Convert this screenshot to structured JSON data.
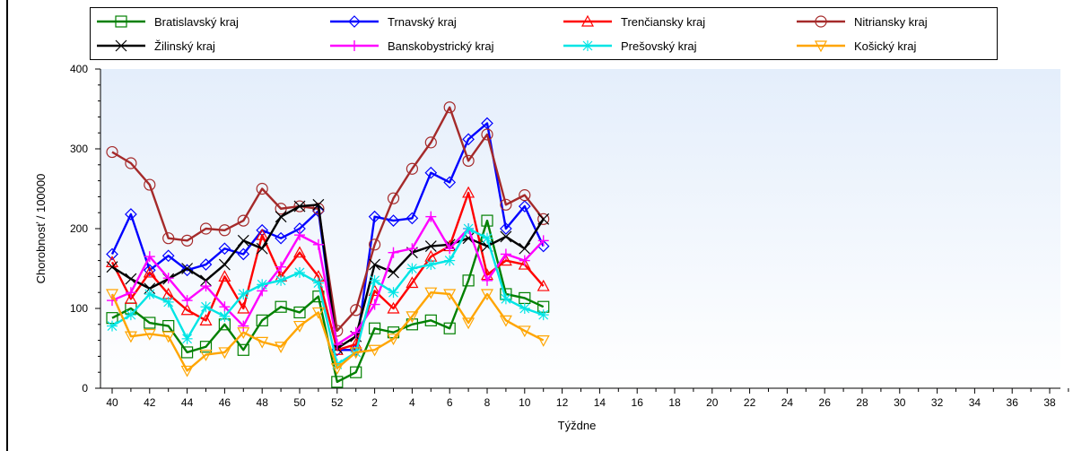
{
  "chart_data": {
    "type": "line",
    "xlabel": "Týždne",
    "ylabel": "Chorobnosť / 100000",
    "ylim": [
      0,
      400
    ],
    "yticks": [
      "0",
      "100",
      "200",
      "300",
      "400"
    ],
    "xtick_labels": [
      "40",
      "42",
      "44",
      "46",
      "48",
      "50",
      "52",
      "2",
      "4",
      "6",
      "8",
      "10",
      "12",
      "14",
      "16",
      "18",
      "20",
      "22",
      "24",
      "26",
      "28",
      "30",
      "32",
      "34",
      "36",
      "38"
    ],
    "categories": [
      "40",
      "41",
      "42",
      "43",
      "44",
      "45",
      "46",
      "47",
      "48",
      "49",
      "50",
      "51",
      "52",
      "1",
      "2",
      "3",
      "4",
      "5",
      "6",
      "7",
      "8",
      "9",
      "10",
      "11"
    ],
    "legend_position": "top",
    "background": "light-blue-gradient",
    "series": [
      {
        "name": "Bratislavský kraj",
        "color": "#008000",
        "marker": "square",
        "values": [
          88,
          100,
          82,
          78,
          45,
          52,
          80,
          48,
          85,
          102,
          95,
          115,
          8,
          20,
          75,
          70,
          80,
          85,
          75,
          135,
          210,
          118,
          113,
          102
        ]
      },
      {
        "name": "Trnavský kraj",
        "color": "#0000ff",
        "marker": "diamond",
        "values": [
          168,
          218,
          148,
          166,
          148,
          155,
          175,
          168,
          198,
          188,
          200,
          222,
          48,
          48,
          215,
          210,
          213,
          270,
          258,
          312,
          332,
          200,
          228,
          178
        ]
      },
      {
        "name": "Trenčiansky kraj",
        "color": "#ff0000",
        "marker": "triangle",
        "values": [
          158,
          112,
          145,
          118,
          98,
          85,
          140,
          100,
          192,
          140,
          170,
          140,
          48,
          55,
          122,
          100,
          132,
          165,
          178,
          245,
          142,
          160,
          155,
          128
        ]
      },
      {
        "name": "Nitriansky kraj",
        "color": "#a52a2a",
        "marker": "circle",
        "values": [
          296,
          282,
          255,
          188,
          185,
          200,
          198,
          210,
          250,
          225,
          228,
          225,
          72,
          98,
          180,
          238,
          275,
          308,
          352,
          285,
          318,
          230,
          242,
          212
        ]
      },
      {
        "name": "Žilinský kraj",
        "color": "#000000",
        "marker": "x",
        "values": [
          152,
          137,
          125,
          137,
          150,
          135,
          155,
          185,
          175,
          215,
          228,
          230,
          50,
          65,
          155,
          145,
          170,
          178,
          180,
          188,
          178,
          190,
          175,
          212
        ]
      },
      {
        "name": "Banskobystrický kraj",
        "color": "#ff00ff",
        "marker": "plus",
        "values": [
          110,
          120,
          165,
          138,
          110,
          128,
          102,
          78,
          122,
          152,
          192,
          180,
          55,
          70,
          105,
          170,
          175,
          215,
          175,
          200,
          135,
          168,
          160,
          185
        ]
      },
      {
        "name": "Prešovský kraj",
        "color": "#00e5e5",
        "marker": "star",
        "values": [
          78,
          92,
          118,
          108,
          62,
          102,
          90,
          118,
          130,
          135,
          145,
          132,
          30,
          45,
          135,
          120,
          150,
          155,
          160,
          200,
          188,
          112,
          100,
          92
        ]
      },
      {
        "name": "Košický kraj",
        "color": "#ffa500",
        "marker": "triangle-down",
        "values": [
          118,
          65,
          68,
          65,
          22,
          42,
          45,
          70,
          58,
          52,
          78,
          95,
          25,
          45,
          48,
          62,
          90,
          120,
          118,
          82,
          118,
          85,
          72,
          60
        ]
      }
    ]
  }
}
